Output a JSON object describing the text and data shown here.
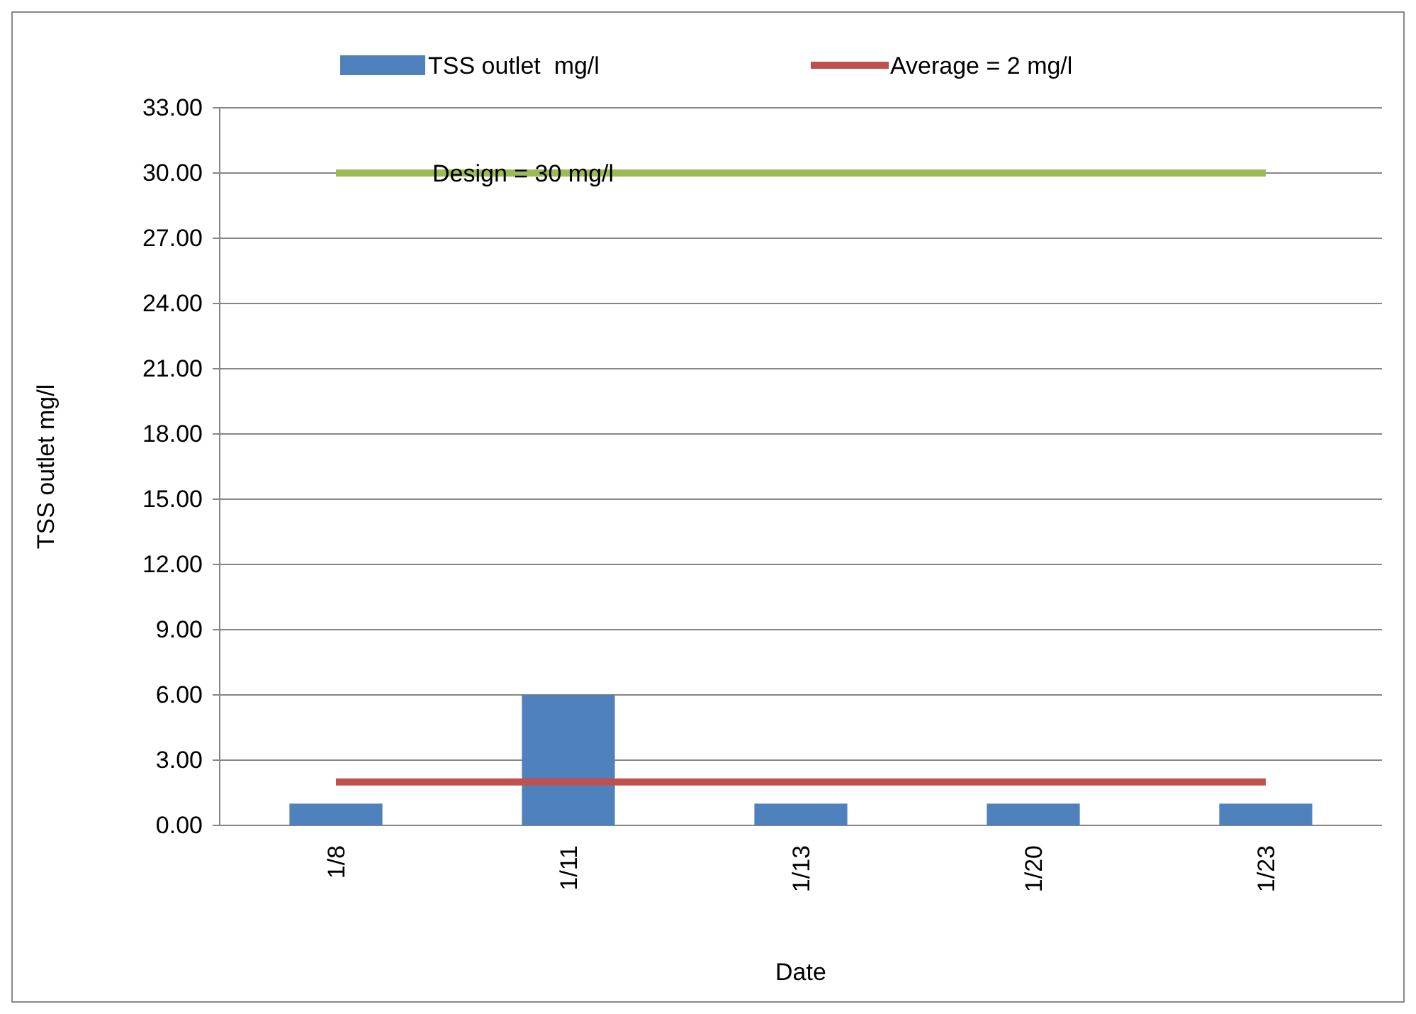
{
  "chart_data": {
    "type": "bar",
    "xlabel": "Date",
    "ylabel": "TSS outlet mg/l",
    "categories": [
      "1/8",
      "1/11",
      "1/13",
      "1/20",
      "1/23"
    ],
    "series": [
      {
        "name": "TSS outlet  mg/l",
        "color": "#4f81bd",
        "values": [
          1,
          6,
          1,
          1,
          1
        ]
      },
      {
        "name": "Average = 2 mg/l",
        "type": "line",
        "color": "#c0504d",
        "values": [
          2,
          2,
          2,
          2,
          2
        ]
      },
      {
        "name": "Design = 30 mg/l",
        "type": "line",
        "color": "#9bbb59",
        "values": [
          30,
          30,
          30,
          30,
          30
        ]
      }
    ],
    "ylim": [
      0,
      33
    ],
    "yticks": [
      {
        "value": 0,
        "label": "0.00"
      },
      {
        "value": 3,
        "label": "3.00"
      },
      {
        "value": 6,
        "label": "6.00"
      },
      {
        "value": 9,
        "label": "9.00"
      },
      {
        "value": 12,
        "label": "12.00"
      },
      {
        "value": 15,
        "label": "15.00"
      },
      {
        "value": 18,
        "label": "18.00"
      },
      {
        "value": 21,
        "label": "21.00"
      },
      {
        "value": 24,
        "label": "24.00"
      },
      {
        "value": 27,
        "label": "27.00"
      },
      {
        "value": 30,
        "label": "30.00"
      },
      {
        "value": 33,
        "label": "33.00"
      }
    ],
    "grid": "y",
    "legend": "top"
  }
}
